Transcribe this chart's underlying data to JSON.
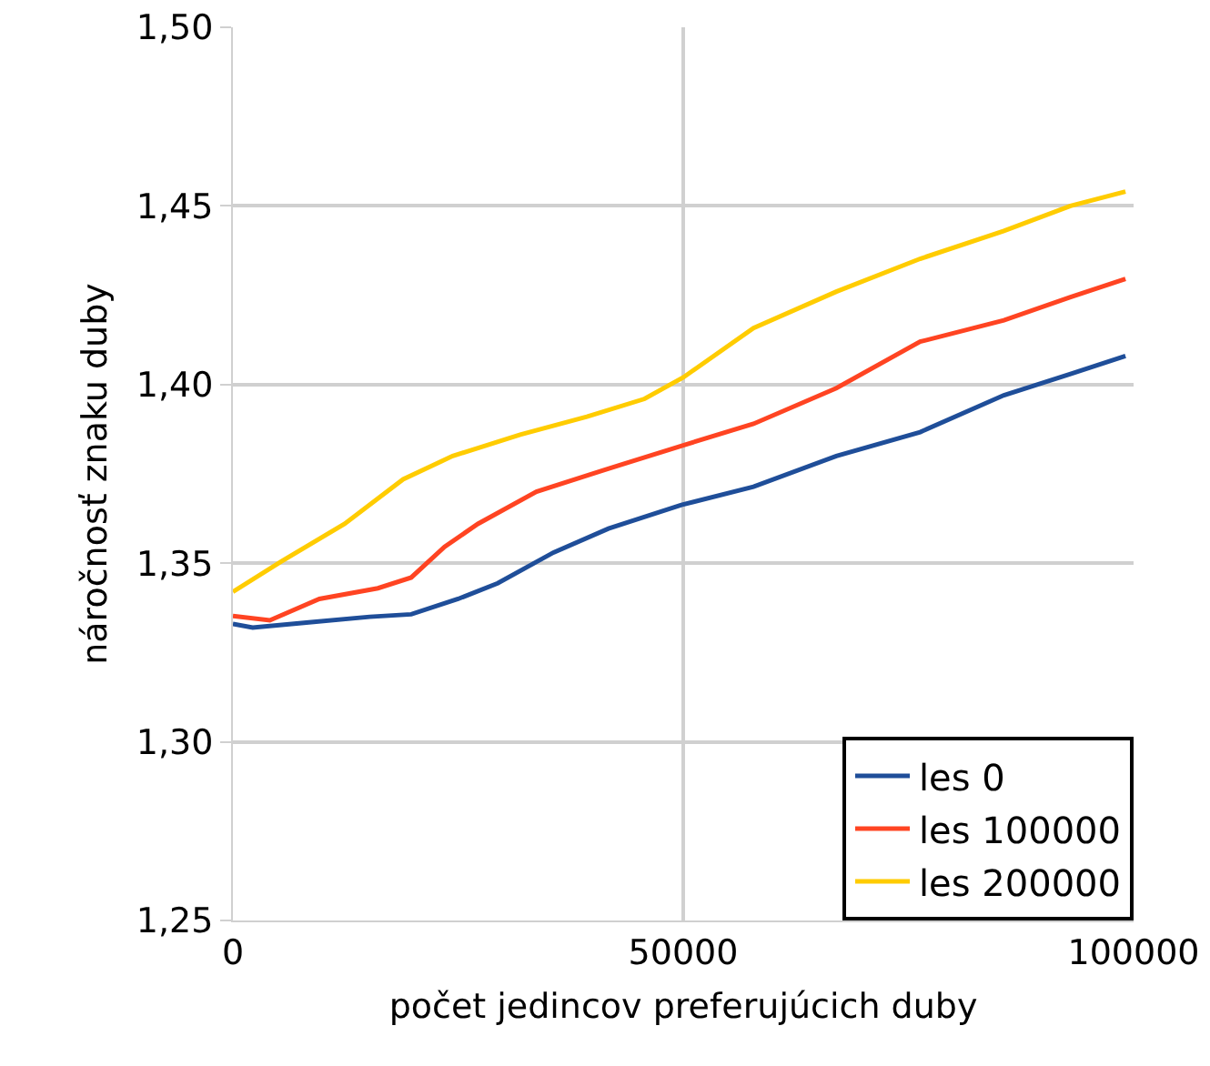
{
  "chart_data": {
    "type": "line",
    "xlabel": "počet jedincov preferujúcich duby",
    "ylabel": "náročnosť znaku duby",
    "xlim": [
      0,
      100000
    ],
    "ylim": [
      1.25,
      1.5
    ],
    "xticks": [
      0,
      50000,
      100000
    ],
    "yticks": [
      {
        "value": 1.25,
        "label": "1,25"
      },
      {
        "value": 1.3,
        "label": "1,30"
      },
      {
        "value": 1.35,
        "label": "1,35"
      },
      {
        "value": 1.4,
        "label": "1,40"
      },
      {
        "value": 1.45,
        "label": "1,45"
      },
      {
        "value": 1.5,
        "label": "1,50"
      }
    ],
    "grid": true,
    "legend": "bottom right",
    "marker": "none",
    "line_style": "solid",
    "series": [
      {
        "name": "les 0",
        "color": "#1f4e99",
        "x": [
          0,
          2200,
          8700,
          15200,
          19800,
          25000,
          29400,
          35600,
          41700,
          49800,
          57800,
          67000,
          76300,
          85600,
          93000,
          99100
        ],
        "values": [
          1.333,
          1.332,
          1.3335,
          1.335,
          1.3357,
          1.34,
          1.3444,
          1.353,
          1.3597,
          1.3663,
          1.3714,
          1.38,
          1.3867,
          1.397,
          1.403,
          1.408
        ]
      },
      {
        "name": "les 100000",
        "color": "#ff4422",
        "x": [
          0,
          4100,
          9600,
          16100,
          19800,
          23500,
          27200,
          33700,
          41100,
          50000,
          57800,
          67000,
          76300,
          85600,
          93000,
          99100
        ],
        "values": [
          1.3352,
          1.334,
          1.34,
          1.343,
          1.346,
          1.3546,
          1.361,
          1.37,
          1.376,
          1.383,
          1.389,
          1.399,
          1.412,
          1.418,
          1.4245,
          1.4296
        ]
      },
      {
        "name": "les 200000",
        "color": "#ffcc00",
        "x": [
          0,
          5400,
          12400,
          18900,
          24400,
          31900,
          39300,
          45700,
          50000,
          57800,
          67000,
          76300,
          85600,
          93000,
          99100
        ],
        "values": [
          1.342,
          1.3505,
          1.361,
          1.3735,
          1.38,
          1.386,
          1.391,
          1.396,
          1.402,
          1.4158,
          1.426,
          1.4352,
          1.443,
          1.45,
          1.454
        ]
      }
    ]
  }
}
